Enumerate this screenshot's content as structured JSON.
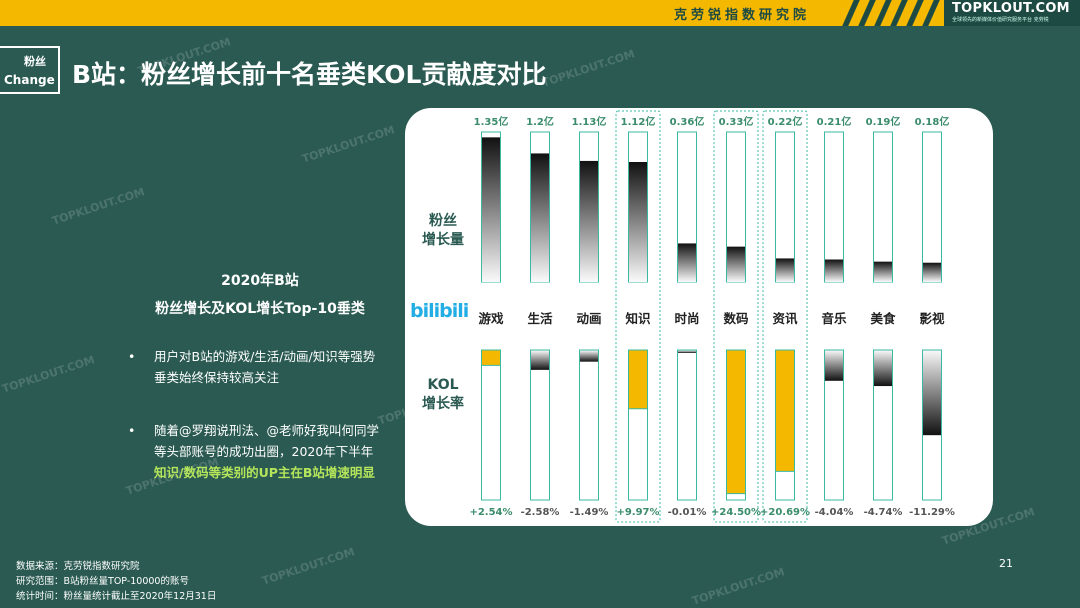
{
  "header": {
    "org": "克劳锐指数研究院",
    "brand": "TOPKLOUT.COM",
    "brand_tag": "全球领先的新媒体价值研究服务平台 克劳锐"
  },
  "badge": {
    "line1": "粉丝",
    "line2": "Change"
  },
  "title": "B站：粉丝增长前十名垂类KOL贡献度对比",
  "watermark": "TOPKLOUT.COM",
  "left": {
    "heading1": "2020年B站",
    "heading2": "粉丝增长及KOL增长Top-10垂类",
    "bullets": [
      {
        "dot": "•",
        "text": "用户对B站的游戏/生活/动画/知识等强势垂类始终保持较高关注",
        "highlight": ""
      },
      {
        "dot": "•",
        "text": "随着@罗翔说刑法、@老师好我叫何同学等头部账号的成功出圈，2020年下半年",
        "highlight": "知识/数码等类别的UP主在B站增速明显"
      }
    ]
  },
  "panel": {
    "label_fans": [
      "粉丝",
      "增长量"
    ],
    "label_kol": [
      "KOL",
      "增长率"
    ],
    "bili_logo": "bilibili"
  },
  "chart_data": {
    "type": "bar",
    "categories": [
      "游戏",
      "生活",
      "动画",
      "知识",
      "时尚",
      "数码",
      "资讯",
      "音乐",
      "美食",
      "影视"
    ],
    "series": [
      {
        "values": [
          1.35,
          1.2,
          1.13,
          1.12,
          0.36,
          0.33,
          0.22,
          0.21,
          0.19,
          0.18
        ],
        "labels": [
          "1.35亿",
          "1.2亿",
          "1.13亿",
          "1.12亿",
          "0.36亿",
          "0.33亿",
          "0.22亿",
          "0.21亿",
          "0.19亿",
          "0.18亿"
        ]
      },
      {
        "values": [
          2.54,
          -2.58,
          -1.49,
          9.97,
          -0.01,
          24.5,
          20.69,
          -4.04,
          -4.74,
          -11.29
        ],
        "labels": [
          "+2.54%",
          "-2.58%",
          "-1.49%",
          "+9.97%",
          "-0.01%",
          "+24.50%",
          "+20.69%",
          "-4.04%",
          "-4.74%",
          "-11.29%"
        ]
      }
    ],
    "highlighted": [
      "知识",
      "数码",
      "资讯"
    ],
    "colors": {
      "positive": "#f5b800",
      "negative": "#111111",
      "frame": "#3bb8a0",
      "label": "#3a8c6c"
    }
  },
  "footer": {
    "source": "数据来源：克劳锐指数研究院",
    "scope": "研究范围：B站粉丝量TOP-10000的账号",
    "time": "统计时间：粉丝量统计截止至2020年12月31日"
  },
  "page_number": "21"
}
